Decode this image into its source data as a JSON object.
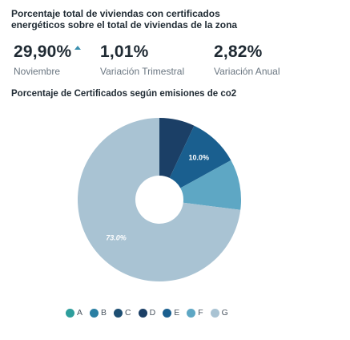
{
  "header": {
    "title": "Porcentaje total de viviendas con certificados energéticos sobre el total de viviendas de la zona"
  },
  "kpis": [
    {
      "value": "29,90%",
      "label": "Noviembre",
      "trend_icon": "arrow-up-icon"
    },
    {
      "value": "1,01%",
      "label": "Variación Trimestral"
    },
    {
      "value": "2,82%",
      "label": "Variación Anual"
    }
  ],
  "chart_data": {
    "type": "pie",
    "title": "Porcentaje de Certificados según emisiones de co2",
    "categories": [
      "A",
      "B",
      "C",
      "D",
      "E",
      "F",
      "G"
    ],
    "values": [
      0,
      0,
      0,
      7.0,
      10.0,
      10.0,
      73.0
    ],
    "data_labels": [
      "",
      "",
      "",
      "",
      "10.0%",
      "",
      "73.0%"
    ],
    "colors": [
      "#2e9e9c",
      "#2a7fa3",
      "#1e4f73",
      "#1b3f66",
      "#1a5f8f",
      "#5ea7c4",
      "#a9c3d3"
    ],
    "donut": true,
    "legend_position": "bottom"
  }
}
